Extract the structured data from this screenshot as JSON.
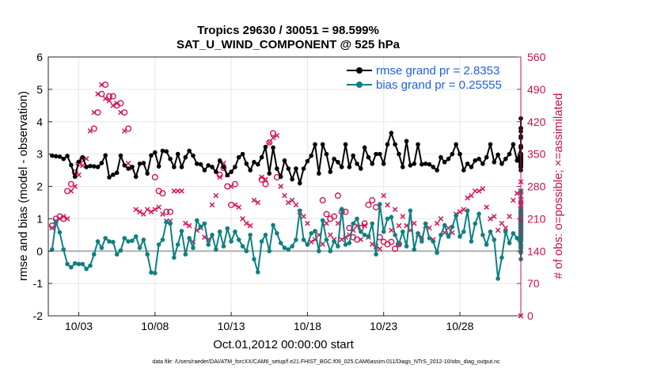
{
  "chart_data": {
    "type": "line",
    "title_line1": "Tropics 29630 / 30051 = 98.599%",
    "title_line2": "SAT_U_WIND_COMPONENT @ 525 hPa",
    "ylabel": "rmse and bias (model - observation)",
    "ylabel_right": "# of obs: o=possible; ×=assimilated",
    "xlabel": "Oct.01,2012 00:00:00 start",
    "footnote": "data file: /Users/raeder/DAI/ATM_forcXX/CAM6_setup/f.e21.FHIST_BGC.f09_025.CAM6assim.011/Diags_NTrS_2012-10/obs_diag_output.nc",
    "xlim": [
      1.0,
      32.0
    ],
    "ylim": [
      -2,
      6
    ],
    "ylim_right": [
      0,
      560
    ],
    "x_ticks": [
      3,
      8,
      13,
      18,
      23,
      28
    ],
    "x_tick_labels": [
      "10/03",
      "10/08",
      "10/13",
      "10/18",
      "10/23",
      "10/28"
    ],
    "y_ticks": [
      -2,
      -1,
      0,
      1,
      2,
      3,
      4,
      5,
      6
    ],
    "y_ticks_right": [
      0,
      70,
      140,
      210,
      280,
      350,
      420,
      490,
      560
    ],
    "x_start": 1.25,
    "x_step": 0.25,
    "colors": {
      "rmse": "#000000",
      "bias": "#0f8080",
      "obs": "#d4145a",
      "zero_line": "#b0b0b0"
    },
    "series": [
      {
        "name": "rmse grand pr = 2.8353",
        "values": [
          2.95,
          2.93,
          2.92,
          2.85,
          2.94,
          2.66,
          2.3,
          2.76,
          2.9,
          2.6,
          2.63,
          2.62,
          2.6,
          2.72,
          2.96,
          2.28,
          2.36,
          2.42,
          2.95,
          2.65,
          2.55,
          2.6,
          2.3,
          2.7,
          2.72,
          2.4,
          2.96,
          3.05,
          2.62,
          3.1,
          3.08,
          2.85,
          2.6,
          3.0,
          2.6,
          2.9,
          3.1,
          2.95,
          2.7,
          2.68,
          2.5,
          2.65,
          2.6,
          2.45,
          2.8,
          2.6,
          2.35,
          2.45,
          2.6,
          2.9,
          3.0,
          2.7,
          2.5,
          2.75,
          2.68,
          2.9,
          3.22,
          2.4,
          3.2,
          2.55,
          2.3,
          2.8,
          2.55,
          2.22,
          2.55,
          2.1,
          2.55,
          2.78,
          2.95,
          3.3,
          2.4,
          3.3,
          3.0,
          2.45,
          2.85,
          2.75,
          2.6,
          3.3,
          2.6,
          2.95,
          2.7,
          2.55,
          3.2,
          2.9,
          2.7,
          3.0,
          3.0,
          2.7,
          3.3,
          3.65,
          3.3,
          3.0,
          2.6,
          3.4,
          2.65,
          2.7,
          3.3,
          2.68,
          2.7,
          2.68,
          2.6,
          2.5,
          2.9,
          2.75,
          2.85,
          3.0,
          3.3,
          3.0,
          2.5,
          2.7,
          2.6,
          2.8,
          2.85,
          2.7,
          2.9,
          3.3,
          2.75,
          2.98,
          2.7,
          2.85,
          3.0,
          3.3,
          2.8,
          3.2,
          3.5,
          3.0,
          2.7,
          2.65,
          2.7,
          3.0,
          3.2,
          2.5,
          2.9,
          2.62,
          2.85,
          2.6,
          2.8,
          2.88,
          2.7,
          2.8,
          2.75,
          3.0,
          2.95,
          2.6,
          2.6,
          2.75,
          2.85,
          3.0,
          3.2,
          3.0,
          2.8,
          2.8,
          2.9,
          2.9,
          2.95,
          3.2,
          3.55,
          4.1,
          3.8,
          3.7,
          3.25,
          3.8,
          2.75,
          2.75,
          2.7,
          2.85,
          2.9
        ]
      },
      {
        "name": "bias grand pr = 0.25555",
        "values": [
          0.05,
          0.9,
          0.58,
          0.05,
          -0.4,
          -0.5,
          -0.38,
          -0.4,
          -0.4,
          -0.55,
          -0.45,
          -0.1,
          0.3,
          0.1,
          0.4,
          0.3,
          0.28,
          -0.1,
          0.02,
          0.4,
          0.3,
          0.32,
          0.45,
          0.1,
          0.35,
          -0.1,
          -0.66,
          -0.68,
          0.2,
          0.35,
          0.9,
          0.85,
          -0.2,
          0.2,
          0.62,
          -0.1,
          0.4,
          0.1,
          0.95,
          0.75,
          0.85,
          0.2,
          0.5,
          0.05,
          0.6,
          0.15,
          0.7,
          0.3,
          0.6,
          0.35,
          0.15,
          0.0,
          0.5,
          -0.25,
          -0.65,
          0.3,
          0.5,
          0.0,
          0.8,
          0.55,
          0.25,
          0.1,
          0.05,
          0.15,
          0.35,
          1.25,
          0.35,
          0.2,
          0.55,
          0.62,
          0.0,
          0.95,
          0.35,
          0.0,
          0.3,
          0.15,
          1.3,
          0.2,
          0.25,
          0.85,
          1.0,
          0.6,
          0.5,
          0.45,
          0.85,
          -0.1,
          1.45,
          0.6,
          1.0,
          1.05,
          0.5,
          0.22,
          0.6,
          0.15,
          1.25,
          0.05,
          0.55,
          0.3,
          0.85,
          0.4,
          0.3,
          -0.05,
          0.5,
          0.8,
          0.45,
          0.75,
          1.1,
          0.45,
          0.6,
          1.25,
          0.3,
          0.85,
          1.15,
          0.5,
          0.2,
          0.6,
          0.35,
          -0.85,
          -0.2,
          0.6,
          0.25,
          0.55,
          0.4,
          0.15,
          0.7,
          0.35,
          0.2,
          0.5,
          0.3,
          0.5,
          0.75,
          0.4,
          0.5,
          0.3,
          0.55,
          0.2,
          0.0,
          0.3,
          0.1,
          0.45,
          0.3,
          0.8,
          0.55,
          0.3,
          0.1,
          0.3,
          0.0,
          0.1,
          0.4,
          0.75,
          0.6,
          0.2,
          0.45,
          1.2,
          1.05,
          1.15,
          0.6,
          1.3,
          1.85,
          0.9,
          0.85,
          1.3,
          0.55,
          -0.25,
          0.15,
          0.0,
          -0.05
        ]
      },
      {
        "name": "obs_possible",
        "values": [
          195,
          210,
          215,
          210,
          270,
          285,
          310,
          330,
          340,
          null,
          null,
          405,
          440,
          480,
          500,
          475,
          475,
          455,
          460,
          440,
          405,
          null,
          null,
          null,
          null,
          null,
          null,
          300,
          270,
          265,
          225,
          225,
          null,
          null,
          null,
          null,
          null,
          null,
          null,
          null,
          null,
          null,
          null,
          null,
          305,
          320,
          280,
          240,
          285,
          null,
          null,
          null,
          null,
          null,
          null,
          295,
          285,
          375,
          395,
          300,
          null,
          null,
          null,
          null,
          null,
          null,
          null,
          null,
          null,
          null,
          null,
          250,
          220,
          210,
          215,
          260,
          225,
          225,
          190,
          170,
          165,
          190,
          200,
          240,
          250,
          235,
          170,
          160,
          155,
          160,
          145,
          155,
          null,
          null,
          null,
          null,
          null,
          null,
          null,
          null,
          null,
          null,
          null,
          null,
          null,
          null,
          null,
          null,
          null,
          null,
          null,
          null,
          null,
          null,
          null,
          null,
          null,
          null,
          null,
          null,
          null,
          null,
          null,
          null,
          null,
          null,
          null,
          null,
          null,
          null,
          null,
          null,
          null,
          null,
          null,
          null,
          null,
          null,
          null,
          null,
          null,
          null,
          null,
          null,
          null,
          null,
          null,
          null,
          null,
          null,
          null,
          null,
          null,
          null,
          null,
          null,
          null,
          null,
          null,
          null,
          null,
          null,
          null,
          null,
          null,
          null,
          null,
          null,
          null,
          null,
          null,
          null,
          null,
          null,
          null,
          null,
          null,
          null,
          null
        ]
      },
      {
        "name": "obs_assimilated",
        "values": [
          190,
          205,
          210,
          215,
          210,
          270,
          280,
          305,
          325,
          340,
          400,
          440,
          480,
          500,
          470,
          465,
          455,
          460,
          440,
          400,
          330,
          320,
          230,
          225,
          220,
          230,
          225,
          230,
          235,
          220,
          205,
          205,
          270,
          270,
          270,
          200,
          195,
          160,
          185,
          190,
          170,
          165,
          240,
          260,
          300,
          330,
          305,
          280,
          240,
          235,
          210,
          200,
          195,
          250,
          245,
          300,
          295,
          375,
          385,
          390,
          280,
          260,
          245,
          250,
          240,
          225,
          215,
          200,
          160,
          165,
          175,
          155,
          200,
          175,
          165,
          200,
          165,
          170,
          175,
          185,
          195,
          165,
          195,
          170,
          155,
          150,
          145,
          260,
          240,
          185,
          230,
          195,
          215,
          195,
          185,
          200,
          175,
          170,
          195,
          190,
          165,
          200,
          210,
          180,
          190,
          180,
          220,
          225,
          230,
          255,
          260,
          270,
          270,
          275,
          235,
          210,
          215,
          185,
          200,
          190,
          215,
          250,
          265,
          270,
          200,
          210,
          230,
          270,
          240,
          260,
          200,
          195,
          180,
          180,
          170,
          180,
          170,
          205,
          190,
          175,
          210,
          215,
          230,
          245,
          220,
          225,
          210,
          200,
          200,
          220,
          240,
          230,
          215,
          250,
          240,
          245,
          210,
          195,
          195,
          185,
          150,
          180,
          195,
          180,
          165,
          290,
          250,
          200,
          0
        ]
      }
    ]
  }
}
